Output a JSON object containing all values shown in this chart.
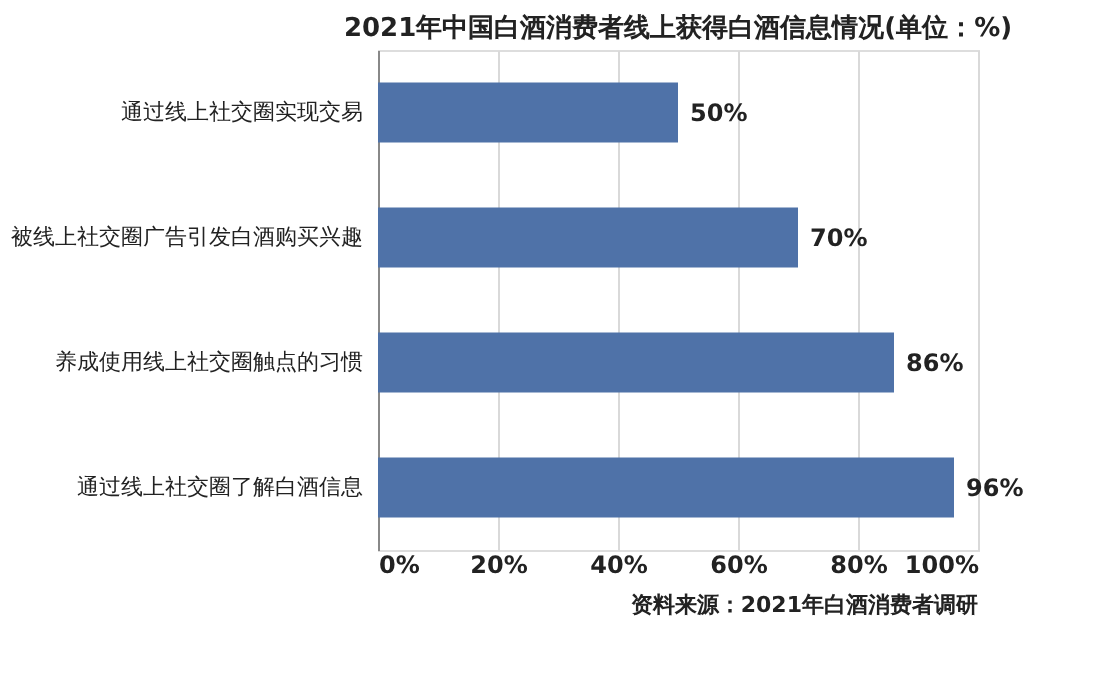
{
  "chart_data": {
    "type": "bar",
    "orientation": "horizontal",
    "title": "2021年中国白酒消费者线上获得白酒信息情况(单位：%)",
    "categories": [
      "通过线上社交圈实现交易",
      "被线上社交圈广告引发白酒购买兴趣",
      "养成使用线上社交圈触点的习惯",
      "通过线上社交圈了解白酒信息"
    ],
    "values": [
      50,
      70,
      86,
      96
    ],
    "color": "#4f72a8",
    "value_labels": [
      "50%",
      "70%",
      "86%",
      "96%"
    ],
    "xlim": [
      0,
      100
    ],
    "xticks": [
      {
        "value": 0,
        "label": "0%"
      },
      {
        "value": 20,
        "label": "20%"
      },
      {
        "value": 40,
        "label": "40%"
      },
      {
        "value": 60,
        "label": "60%"
      },
      {
        "value": 80,
        "label": "80%"
      },
      {
        "value": 100,
        "label": "100%"
      }
    ],
    "grid": "x",
    "annotations": [
      "资料来源：2021年白酒消费者调研"
    ]
  }
}
